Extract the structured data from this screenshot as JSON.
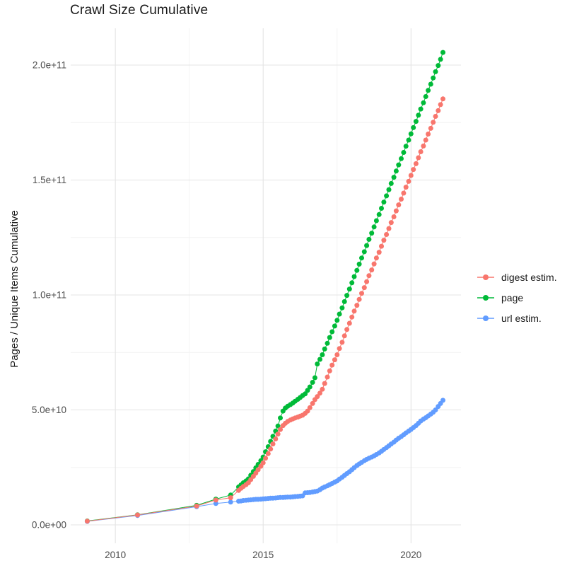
{
  "colors": {
    "background": "#ffffff",
    "grid_major": "#e4e4e4",
    "grid_minor": "#f2f2f2",
    "tick_text": "#4d4d4d",
    "title_text": "#1a1a1a",
    "digest": "#F8766D",
    "page": "#00BA38",
    "url": "#619CFF"
  },
  "chart_data": {
    "type": "scatter",
    "title": "Crawl Size Cumulative",
    "xlabel": "",
    "ylabel": "Pages / Unique Items Cumulative",
    "legend_position": "right",
    "grid": "on",
    "y_unit": "1e9 (values below are billions; axis labels use scientific notation)",
    "xlim": [
      2008.49,
      2021.69
    ],
    "ylim": [
      -8,
      216
    ],
    "x_ticks": [
      2010,
      2015,
      2020
    ],
    "x_tick_labels": [
      "2010",
      "2015",
      "2020"
    ],
    "x_minor_ticks": [
      2012.5,
      2017.5
    ],
    "y_ticks": [
      0,
      50,
      100,
      150,
      200
    ],
    "y_tick_labels": [
      "0.0e+00",
      "5.0e+10",
      "1.0e+11",
      "1.5e+11",
      "2.0e+11"
    ],
    "y_minor_ticks": [
      25,
      75,
      125,
      175
    ],
    "series": [
      {
        "id": "digest-estim",
        "name": "digest estim.",
        "color": "#F8766D",
        "points": [
          [
            2009.05,
            1.6
          ],
          [
            2010.75,
            4.3
          ],
          [
            2012.75,
            8.2
          ],
          [
            2013.4,
            10.8
          ],
          [
            2013.9,
            11.8
          ],
          [
            2014.17,
            15.0
          ],
          [
            2014.25,
            15.9
          ],
          [
            2014.33,
            16.7
          ],
          [
            2014.42,
            17.5
          ],
          [
            2014.5,
            18.3
          ],
          [
            2014.58,
            19.7
          ],
          [
            2014.67,
            21.1
          ],
          [
            2014.75,
            22.5
          ],
          [
            2014.83,
            24.0
          ],
          [
            2014.92,
            25.5
          ],
          [
            2015.0,
            27.0
          ],
          [
            2015.08,
            29.0
          ],
          [
            2015.17,
            31.0
          ],
          [
            2015.25,
            33.0
          ],
          [
            2015.33,
            35.2
          ],
          [
            2015.42,
            37.4
          ],
          [
            2015.5,
            39.5
          ],
          [
            2015.58,
            41.5
          ],
          [
            2015.67,
            43.2
          ],
          [
            2015.75,
            44.2
          ],
          [
            2015.83,
            45.0
          ],
          [
            2015.92,
            45.6
          ],
          [
            2016.0,
            46.1
          ],
          [
            2016.08,
            46.5
          ],
          [
            2016.17,
            46.9
          ],
          [
            2016.25,
            47.3
          ],
          [
            2016.33,
            47.7
          ],
          [
            2016.42,
            48.5
          ],
          [
            2016.5,
            49.5
          ],
          [
            2016.58,
            51.0
          ],
          [
            2016.67,
            52.8
          ],
          [
            2016.75,
            54.5
          ],
          [
            2016.83,
            55.8
          ],
          [
            2016.92,
            57.3
          ],
          [
            2017.0,
            59.0
          ],
          [
            2017.08,
            61.5
          ],
          [
            2017.17,
            64.3
          ],
          [
            2017.25,
            67.0
          ],
          [
            2017.33,
            69.5
          ],
          [
            2017.42,
            71.8
          ],
          [
            2017.5,
            74.0
          ],
          [
            2017.58,
            76.7
          ],
          [
            2017.67,
            79.4
          ],
          [
            2017.75,
            82.2
          ],
          [
            2017.83,
            85.0
          ],
          [
            2017.92,
            87.7
          ],
          [
            2018.0,
            90.4
          ],
          [
            2018.08,
            93.0
          ],
          [
            2018.17,
            95.5
          ],
          [
            2018.25,
            98.1
          ],
          [
            2018.33,
            100.7
          ],
          [
            2018.42,
            103.2
          ],
          [
            2018.5,
            105.8
          ],
          [
            2018.58,
            108.4
          ],
          [
            2018.67,
            110.9
          ],
          [
            2018.75,
            113.5
          ],
          [
            2018.83,
            116.1
          ],
          [
            2018.92,
            118.6
          ],
          [
            2019.0,
            121.2
          ],
          [
            2019.08,
            123.8
          ],
          [
            2019.17,
            126.3
          ],
          [
            2019.25,
            128.9
          ],
          [
            2019.33,
            131.5
          ],
          [
            2019.42,
            134.0
          ],
          [
            2019.5,
            136.6
          ],
          [
            2019.58,
            139.2
          ],
          [
            2019.67,
            141.7
          ],
          [
            2019.75,
            144.3
          ],
          [
            2019.83,
            146.9
          ],
          [
            2019.92,
            149.4
          ],
          [
            2020.0,
            152.0
          ],
          [
            2020.08,
            154.6
          ],
          [
            2020.17,
            157.1
          ],
          [
            2020.25,
            159.7
          ],
          [
            2020.33,
            162.3
          ],
          [
            2020.42,
            164.8
          ],
          [
            2020.5,
            167.4
          ],
          [
            2020.58,
            170.0
          ],
          [
            2020.67,
            172.5
          ],
          [
            2020.75,
            175.1
          ],
          [
            2020.83,
            177.7
          ],
          [
            2020.92,
            180.2
          ],
          [
            2021.0,
            182.8
          ],
          [
            2021.08,
            185.3
          ]
        ]
      },
      {
        "id": "page",
        "name": "page",
        "color": "#00BA38",
        "points": [
          [
            2009.05,
            1.7
          ],
          [
            2010.75,
            4.4
          ],
          [
            2012.75,
            8.5
          ],
          [
            2013.4,
            11.2
          ],
          [
            2013.9,
            13.0
          ],
          [
            2014.17,
            16.5
          ],
          [
            2014.25,
            17.4
          ],
          [
            2014.33,
            18.3
          ],
          [
            2014.42,
            19.1
          ],
          [
            2014.5,
            20.0
          ],
          [
            2014.58,
            21.6
          ],
          [
            2014.67,
            23.2
          ],
          [
            2014.75,
            24.8
          ],
          [
            2014.83,
            26.3
          ],
          [
            2014.92,
            27.9
          ],
          [
            2015.0,
            29.5
          ],
          [
            2015.08,
            31.8
          ],
          [
            2015.17,
            34.0
          ],
          [
            2015.25,
            36.3
          ],
          [
            2015.33,
            38.5
          ],
          [
            2015.42,
            40.8
          ],
          [
            2015.5,
            43.0
          ],
          [
            2015.58,
            46.5
          ],
          [
            2015.67,
            49.5
          ],
          [
            2015.75,
            50.8
          ],
          [
            2015.83,
            51.6
          ],
          [
            2015.92,
            52.3
          ],
          [
            2016.0,
            53.0
          ],
          [
            2016.08,
            53.8
          ],
          [
            2016.17,
            54.6
          ],
          [
            2016.25,
            55.4
          ],
          [
            2016.33,
            56.2
          ],
          [
            2016.42,
            57.0
          ],
          [
            2016.5,
            58.5
          ],
          [
            2016.58,
            60.0
          ],
          [
            2016.67,
            62.0
          ],
          [
            2016.75,
            64.0
          ],
          [
            2016.83,
            70.0
          ],
          [
            2016.92,
            72.0
          ],
          [
            2017.0,
            74.0
          ],
          [
            2017.08,
            76.5
          ],
          [
            2017.17,
            79.0
          ],
          [
            2017.25,
            81.5
          ],
          [
            2017.33,
            84.0
          ],
          [
            2017.42,
            86.5
          ],
          [
            2017.5,
            89.0
          ],
          [
            2017.58,
            91.7
          ],
          [
            2017.67,
            94.4
          ],
          [
            2017.75,
            97.1
          ],
          [
            2017.83,
            99.8
          ],
          [
            2017.92,
            102.6
          ],
          [
            2018.0,
            105.3
          ],
          [
            2018.08,
            108.0
          ],
          [
            2018.17,
            110.7
          ],
          [
            2018.25,
            113.4
          ],
          [
            2018.33,
            116.1
          ],
          [
            2018.42,
            118.8
          ],
          [
            2018.5,
            121.5
          ],
          [
            2018.58,
            124.2
          ],
          [
            2018.67,
            126.9
          ],
          [
            2018.75,
            129.6
          ],
          [
            2018.83,
            132.3
          ],
          [
            2018.92,
            135.0
          ],
          [
            2019.0,
            137.7
          ],
          [
            2019.08,
            140.4
          ],
          [
            2019.17,
            143.1
          ],
          [
            2019.25,
            145.8
          ],
          [
            2019.33,
            148.5
          ],
          [
            2019.42,
            151.2
          ],
          [
            2019.5,
            153.9
          ],
          [
            2019.58,
            156.6
          ],
          [
            2019.67,
            159.3
          ],
          [
            2019.75,
            162.0
          ],
          [
            2019.83,
            164.7
          ],
          [
            2019.92,
            167.4
          ],
          [
            2020.0,
            170.1
          ],
          [
            2020.08,
            172.8
          ],
          [
            2020.17,
            175.5
          ],
          [
            2020.25,
            178.2
          ],
          [
            2020.33,
            180.9
          ],
          [
            2020.42,
            183.6
          ],
          [
            2020.5,
            186.3
          ],
          [
            2020.58,
            189.0
          ],
          [
            2020.67,
            191.7
          ],
          [
            2020.75,
            194.4
          ],
          [
            2020.83,
            197.1
          ],
          [
            2020.92,
            199.8
          ],
          [
            2021.0,
            202.5
          ],
          [
            2021.08,
            205.5
          ]
        ]
      },
      {
        "id": "url-estim",
        "name": "url estim.",
        "color": "#619CFF",
        "points": [
          [
            2009.05,
            1.5
          ],
          [
            2010.75,
            4.1
          ],
          [
            2012.75,
            7.9
          ],
          [
            2013.4,
            9.3
          ],
          [
            2013.9,
            9.9
          ],
          [
            2014.17,
            10.3
          ],
          [
            2014.25,
            10.4
          ],
          [
            2014.33,
            10.6
          ],
          [
            2014.42,
            10.7
          ],
          [
            2014.5,
            10.8
          ],
          [
            2014.58,
            10.9
          ],
          [
            2014.67,
            11.0
          ],
          [
            2014.75,
            11.1
          ],
          [
            2014.83,
            11.1
          ],
          [
            2014.92,
            11.2
          ],
          [
            2015.0,
            11.3
          ],
          [
            2015.08,
            11.4
          ],
          [
            2015.17,
            11.5
          ],
          [
            2015.25,
            11.6
          ],
          [
            2015.33,
            11.6
          ],
          [
            2015.42,
            11.7
          ],
          [
            2015.5,
            11.8
          ],
          [
            2015.58,
            11.9
          ],
          [
            2015.67,
            11.9
          ],
          [
            2015.75,
            12.0
          ],
          [
            2015.83,
            12.1
          ],
          [
            2015.92,
            12.1
          ],
          [
            2016.0,
            12.2
          ],
          [
            2016.08,
            12.3
          ],
          [
            2016.17,
            12.4
          ],
          [
            2016.25,
            12.5
          ],
          [
            2016.33,
            12.6
          ],
          [
            2016.42,
            13.9
          ],
          [
            2016.5,
            14.0
          ],
          [
            2016.58,
            14.1
          ],
          [
            2016.67,
            14.3
          ],
          [
            2016.75,
            14.5
          ],
          [
            2016.83,
            14.7
          ],
          [
            2016.92,
            15.3
          ],
          [
            2017.0,
            16.0
          ],
          [
            2017.08,
            16.5
          ],
          [
            2017.17,
            17.0
          ],
          [
            2017.25,
            17.5
          ],
          [
            2017.33,
            18.0
          ],
          [
            2017.42,
            18.6
          ],
          [
            2017.5,
            19.1
          ],
          [
            2017.58,
            19.9
          ],
          [
            2017.67,
            20.7
          ],
          [
            2017.75,
            21.5
          ],
          [
            2017.83,
            22.3
          ],
          [
            2017.92,
            23.1
          ],
          [
            2018.0,
            24.0
          ],
          [
            2018.08,
            24.9
          ],
          [
            2018.17,
            25.8
          ],
          [
            2018.25,
            26.5
          ],
          [
            2018.33,
            27.2
          ],
          [
            2018.42,
            27.9
          ],
          [
            2018.5,
            28.5
          ],
          [
            2018.58,
            29.0
          ],
          [
            2018.67,
            29.5
          ],
          [
            2018.75,
            30.0
          ],
          [
            2018.83,
            30.6
          ],
          [
            2018.92,
            31.3
          ],
          [
            2019.0,
            32.0
          ],
          [
            2019.08,
            32.8
          ],
          [
            2019.17,
            33.6
          ],
          [
            2019.25,
            34.4
          ],
          [
            2019.33,
            35.2
          ],
          [
            2019.42,
            36.0
          ],
          [
            2019.5,
            36.9
          ],
          [
            2019.58,
            37.7
          ],
          [
            2019.67,
            38.4
          ],
          [
            2019.75,
            39.2
          ],
          [
            2019.83,
            40.0
          ],
          [
            2019.92,
            40.8
          ],
          [
            2020.0,
            41.5
          ],
          [
            2020.08,
            42.3
          ],
          [
            2020.17,
            43.2
          ],
          [
            2020.25,
            44.2
          ],
          [
            2020.33,
            45.2
          ],
          [
            2020.42,
            46.0
          ],
          [
            2020.5,
            46.6
          ],
          [
            2020.58,
            47.4
          ],
          [
            2020.67,
            48.2
          ],
          [
            2020.75,
            49.0
          ],
          [
            2020.83,
            50.0
          ],
          [
            2020.92,
            51.5
          ],
          [
            2021.0,
            52.8
          ],
          [
            2021.08,
            54.2
          ]
        ]
      }
    ]
  }
}
